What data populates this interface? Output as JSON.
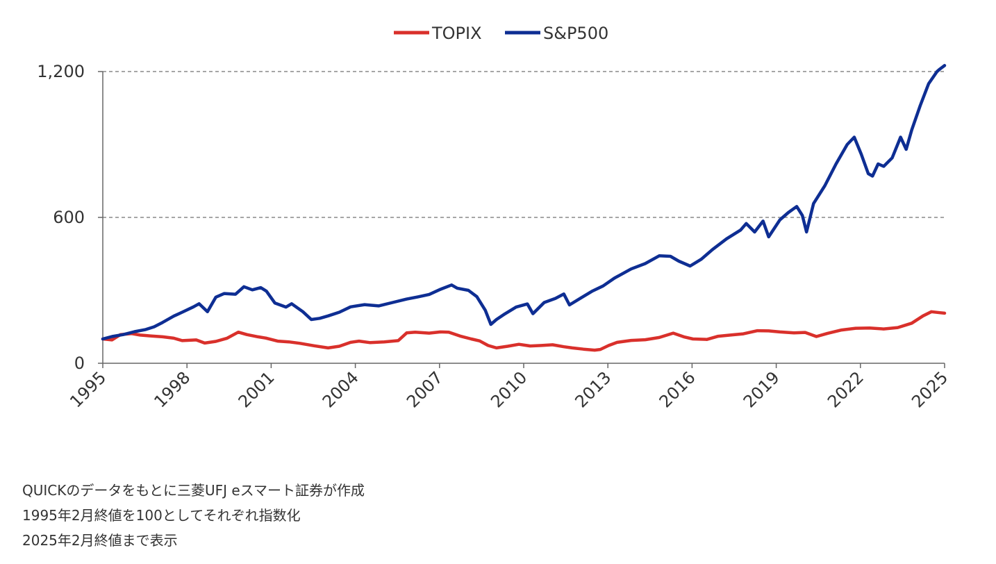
{
  "chart_data": {
    "type": "line",
    "legend_position": "top-center",
    "grid": "horizontal dashed",
    "ylim": [
      0,
      1200
    ],
    "y_ticks": [
      0,
      600,
      1200
    ],
    "y_tick_labels": [
      "0",
      "600",
      "1,200"
    ],
    "xlim": [
      1995.17,
      2025.17
    ],
    "x_ticks": [
      1995,
      1998,
      2001,
      2004,
      2007,
      2010,
      2013,
      2016,
      2019,
      2022,
      2025
    ],
    "x_tick_labels": [
      "1995",
      "1998",
      "2001",
      "2004",
      "2007",
      "2010",
      "2013",
      "2016",
      "2019",
      "2022",
      "2025"
    ],
    "series": [
      {
        "name": "TOPIX",
        "color": "#d9302b",
        "x": [
          1995.17,
          1995.5,
          1995.8,
          1996.2,
          1996.5,
          1996.9,
          1997.3,
          1997.7,
          1998.0,
          1998.5,
          1998.8,
          1999.2,
          1999.6,
          2000.0,
          2000.3,
          2000.7,
          2001.0,
          2001.4,
          2001.8,
          2002.2,
          2002.7,
          2003.2,
          2003.6,
          2004.0,
          2004.3,
          2004.7,
          2005.2,
          2005.7,
          2006.0,
          2006.3,
          2006.8,
          2007.2,
          2007.5,
          2007.9,
          2008.3,
          2008.6,
          2008.9,
          2009.2,
          2009.6,
          2010.0,
          2010.4,
          2010.8,
          2011.2,
          2011.6,
          2011.9,
          2012.3,
          2012.7,
          2012.9,
          2013.2,
          2013.5,
          2014.0,
          2014.5,
          2015.0,
          2015.5,
          2015.9,
          2016.2,
          2016.7,
          2017.1,
          2017.6,
          2018.0,
          2018.5,
          2018.9,
          2019.3,
          2019.8,
          2020.2,
          2020.6,
          2021.0,
          2021.5,
          2022.0,
          2022.5,
          2023.0,
          2023.5,
          2024.0,
          2024.4,
          2024.7,
          2025.0,
          2025.17
        ],
        "values": [
          100,
          96,
          118,
          122,
          116,
          112,
          109,
          103,
          93,
          96,
          83,
          90,
          103,
          128,
          118,
          109,
          103,
          91,
          88,
          82,
          72,
          63,
          70,
          86,
          91,
          85,
          88,
          93,
          125,
          128,
          124,
          129,
          128,
          112,
          100,
          92,
          73,
          63,
          70,
          78,
          71,
          73,
          76,
          68,
          63,
          58,
          54,
          57,
          73,
          86,
          94,
          97,
          106,
          124,
          108,
          100,
          98,
          111,
          117,
          121,
          134,
          133,
          129,
          125,
          127,
          110,
          123,
          137,
          144,
          145,
          141,
          147,
          165,
          195,
          212,
          208,
          206
        ]
      },
      {
        "name": "S&P500",
        "color": "#0e2e93",
        "x": [
          1995.17,
          1995.5,
          1995.9,
          1996.3,
          1996.7,
          1997.0,
          1997.3,
          1997.7,
          1998.0,
          1998.4,
          1998.6,
          1998.9,
          1999.2,
          1999.5,
          1999.9,
          2000.2,
          2000.5,
          2000.8,
          2001.0,
          2001.3,
          2001.7,
          2001.9,
          2002.3,
          2002.6,
          2002.9,
          2003.2,
          2003.6,
          2004.0,
          2004.5,
          2005.0,
          2005.5,
          2006.0,
          2006.4,
          2006.8,
          2007.2,
          2007.6,
          2007.8,
          2008.2,
          2008.5,
          2008.8,
          2009.0,
          2009.2,
          2009.5,
          2009.9,
          2010.3,
          2010.5,
          2010.9,
          2011.3,
          2011.6,
          2011.8,
          2012.2,
          2012.6,
          2013.0,
          2013.4,
          2014.0,
          2014.5,
          2015.0,
          2015.4,
          2015.7,
          2016.1,
          2016.5,
          2016.9,
          2017.4,
          2017.9,
          2018.1,
          2018.4,
          2018.7,
          2018.9,
          2019.3,
          2019.6,
          2019.9,
          2020.1,
          2020.25,
          2020.5,
          2020.9,
          2021.3,
          2021.7,
          2021.95,
          2022.2,
          2022.45,
          2022.6,
          2022.8,
          2023.0,
          2023.3,
          2023.6,
          2023.8,
          2024.0,
          2024.3,
          2024.6,
          2024.9,
          2025.0,
          2025.17
        ],
        "values": [
          100,
          110,
          118,
          130,
          139,
          150,
          168,
          194,
          210,
          232,
          245,
          212,
          272,
          287,
          284,
          315,
          302,
          311,
          297,
          248,
          231,
          245,
          212,
          180,
          185,
          195,
          210,
          232,
          241,
          236,
          250,
          264,
          273,
          283,
          304,
          322,
          309,
          300,
          274,
          218,
          160,
          180,
          203,
          231,
          244,
          204,
          250,
          267,
          285,
          240,
          268,
          296,
          318,
          350,
          388,
          410,
          442,
          440,
          420,
          400,
          428,
          468,
          512,
          548,
          575,
          540,
          585,
          520,
          590,
          620,
          645,
          608,
          540,
          657,
          730,
          820,
          900,
          930,
          860,
          780,
          770,
          820,
          810,
          845,
          930,
          880,
          960,
          1060,
          1150,
          1200,
          1210,
          1225
        ]
      }
    ]
  },
  "notes": [
    "QUICKのデータをもとに三菱UFJ eスマート証券が作成",
    "1995年2月終値を100としてそれぞれ指数化",
    "2025年2月終値まで表示"
  ]
}
